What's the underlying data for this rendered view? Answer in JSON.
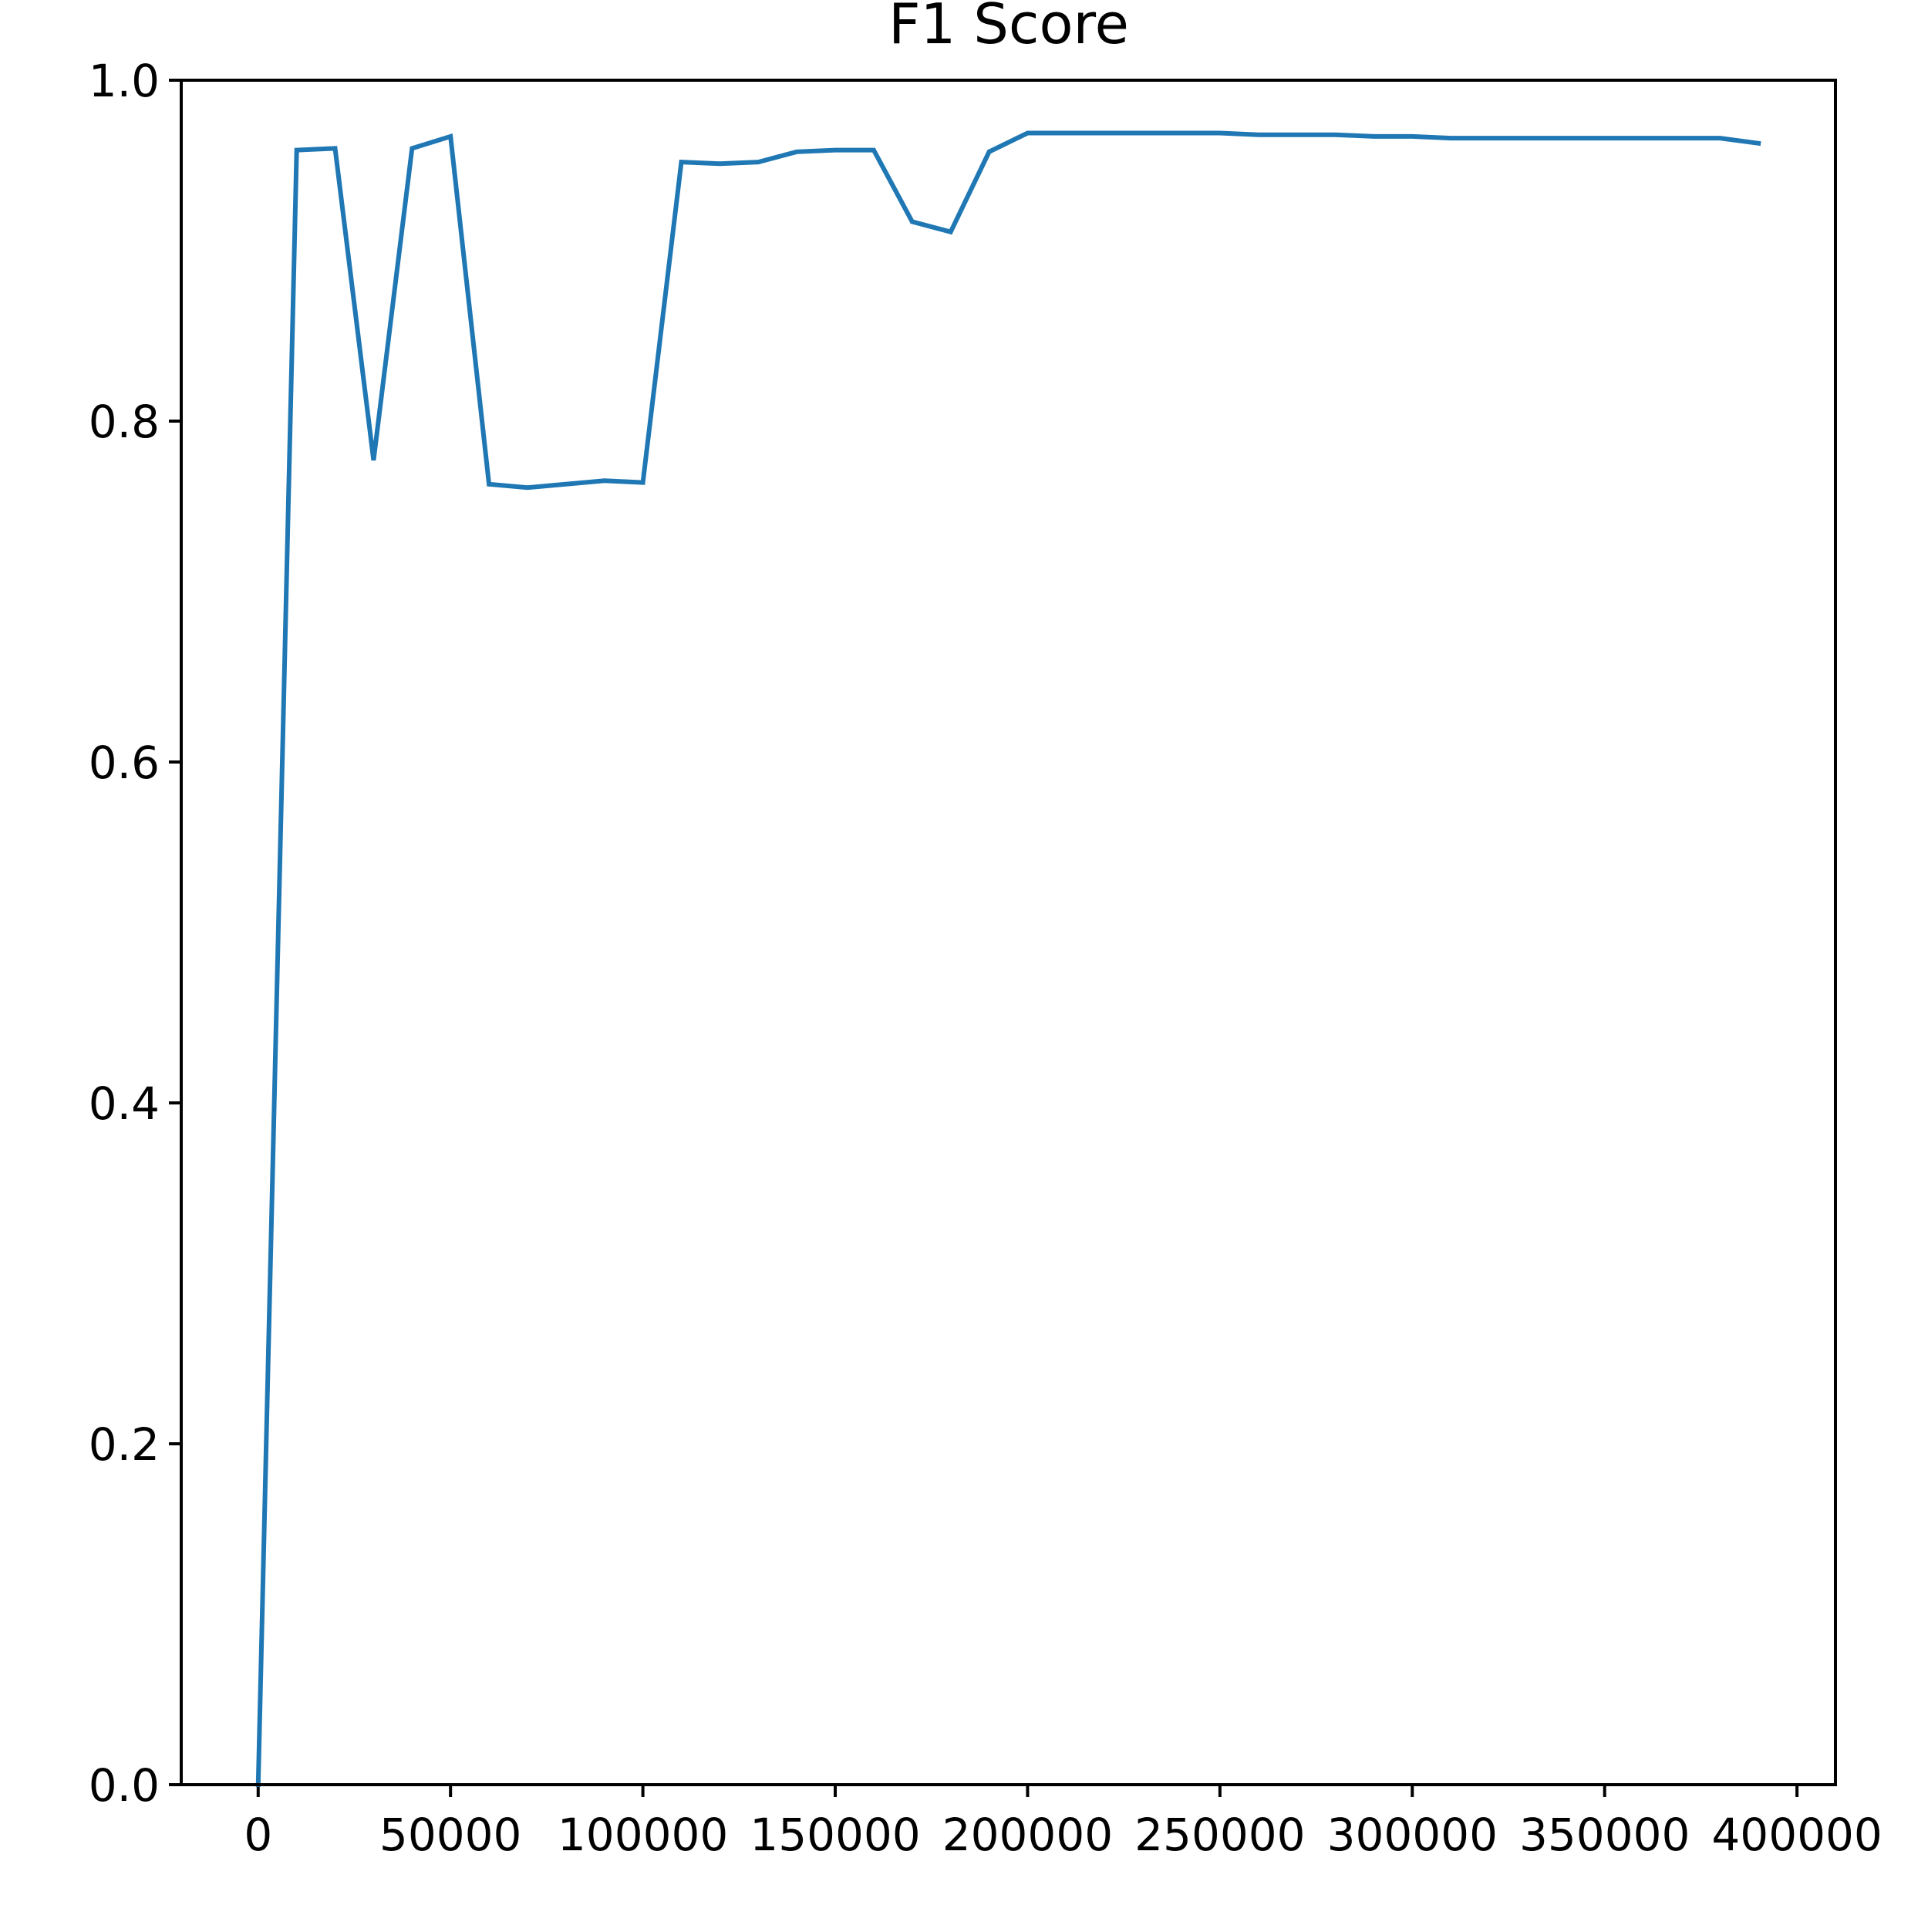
{
  "colors": {
    "line": "#1f77b4",
    "axes": "#000000",
    "background": "#ffffff"
  },
  "chart_data": {
    "type": "line",
    "title": "F1 Score",
    "xlabel": "",
    "ylabel": "",
    "xlim": [
      -20000,
      410000
    ],
    "ylim": [
      0.0,
      1.0
    ],
    "grid": false,
    "legend": "none",
    "x_ticks": [
      0,
      50000,
      100000,
      150000,
      200000,
      250000,
      300000,
      350000,
      400000
    ],
    "x_tick_labels": [
      "0",
      "50000",
      "100000",
      "150000",
      "200000",
      "250000",
      "300000",
      "350000",
      "400000"
    ],
    "y_ticks": [
      0.0,
      0.2,
      0.4,
      0.6,
      0.8,
      1.0
    ],
    "y_tick_labels": [
      "0.0",
      "0.2",
      "0.4",
      "0.6",
      "0.8",
      "1.0"
    ],
    "series": [
      {
        "x": [
          0,
          10000,
          20000,
          30000,
          40000,
          50000,
          60000,
          70000,
          80000,
          90000,
          100000,
          110000,
          120000,
          130000,
          140000,
          150000,
          160000,
          170000,
          180000,
          190000,
          200000,
          210000,
          220000,
          230000,
          240000,
          250000,
          260000,
          270000,
          280000,
          290000,
          300000,
          310000,
          320000,
          330000,
          340000,
          350000,
          360000,
          370000,
          380000,
          390000
        ],
        "values": [
          0.0,
          0.959,
          0.96,
          0.777,
          0.96,
          0.967,
          0.763,
          0.761,
          0.763,
          0.765,
          0.764,
          0.952,
          0.951,
          0.952,
          0.958,
          0.959,
          0.959,
          0.917,
          0.911,
          0.958,
          0.969,
          0.969,
          0.969,
          0.969,
          0.969,
          0.969,
          0.968,
          0.968,
          0.968,
          0.967,
          0.967,
          0.966,
          0.966,
          0.966,
          0.966,
          0.966,
          0.966,
          0.966,
          0.966,
          0.963
        ]
      }
    ]
  }
}
